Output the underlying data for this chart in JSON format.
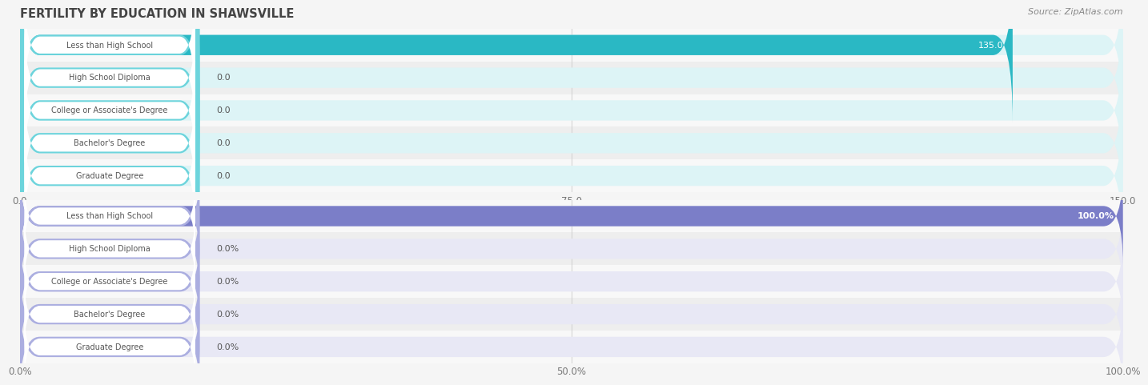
{
  "title": "FERTILITY BY EDUCATION IN SHAWSVILLE",
  "source": "Source: ZipAtlas.com",
  "categories": [
    "Less than High School",
    "High School Diploma",
    "College or Associate's Degree",
    "Bachelor's Degree",
    "Graduate Degree"
  ],
  "chart1": {
    "values": [
      135.0,
      0.0,
      0.0,
      0.0,
      0.0
    ],
    "labels": [
      "135.0",
      "0.0",
      "0.0",
      "0.0",
      "0.0"
    ],
    "xlim": [
      0,
      150.0
    ],
    "xticks": [
      0.0,
      75.0,
      150.0
    ],
    "xtick_labels": [
      "0.0",
      "75.0",
      "150.0"
    ],
    "bar_color_main": "#2ab8c4",
    "bar_color_stub_fill": "#6dd4dc",
    "bar_bg_color": "#ddf4f6",
    "label_bg": "#ffffff",
    "label_text_color": "#555555"
  },
  "chart2": {
    "values": [
      100.0,
      0.0,
      0.0,
      0.0,
      0.0
    ],
    "labels": [
      "100.0%",
      "0.0%",
      "0.0%",
      "0.0%",
      "0.0%"
    ],
    "xlim": [
      0,
      100.0
    ],
    "xticks": [
      0.0,
      50.0,
      100.0
    ],
    "xtick_labels": [
      "0.0%",
      "50.0%",
      "100.0%"
    ],
    "bar_color_main": "#7b7ec8",
    "bar_color_stub_fill": "#abaee0",
    "bar_bg_color": "#e8e8f5",
    "label_bg": "#ffffff",
    "label_text_color": "#555555"
  },
  "bg_color": "#f5f5f5",
  "row_bg_even": "#f8f8f8",
  "row_bg_odd": "#eeeeee",
  "value_text_color": "#555555",
  "title_color": "#444444",
  "source_color": "#888888",
  "grid_color": "#d0d0d0"
}
